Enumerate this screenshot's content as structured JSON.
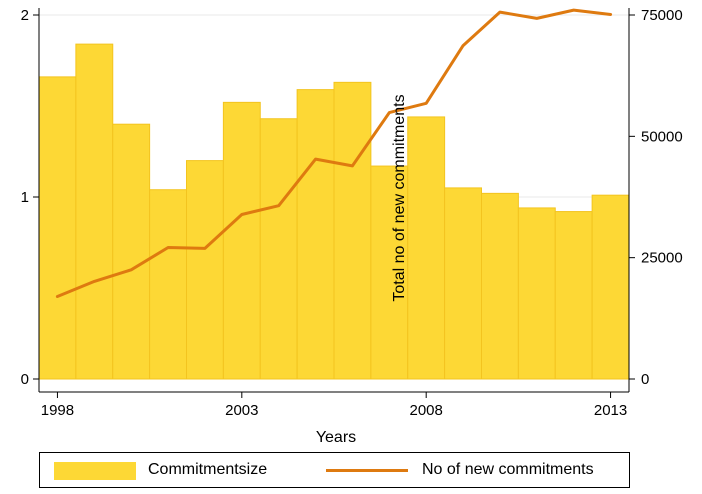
{
  "chart_data": {
    "type": "bar",
    "xlabel": "Years",
    "y2label": "Total no of new commitments",
    "x_ticks": [
      1998,
      2003,
      2008,
      2013
    ],
    "y_ticks": [
      0,
      1,
      2
    ],
    "y2_ticks": [
      0,
      25000,
      50000,
      75000
    ],
    "x_tick_labels": [
      "1998",
      "2003",
      "2008",
      "2013"
    ],
    "y_tick_labels": [
      "0",
      "1",
      "2"
    ],
    "y2_tick_labels": [
      "0",
      "25000",
      "50000",
      "75000"
    ],
    "xlim": [
      1997.5,
      2013.5
    ],
    "ylim": [
      0,
      2
    ],
    "y2lim": [
      0,
      75000
    ],
    "grid": true,
    "legend_position": "bottom",
    "series": [
      {
        "name": "Commitmentsize",
        "type": "bar",
        "axis": "left",
        "color": "#FDD835",
        "x": [
          1998,
          1999,
          2000,
          2001,
          2002,
          2003,
          2004,
          2005,
          2006,
          2007,
          2008,
          2009,
          2010,
          2011,
          2012,
          2013
        ],
        "values": [
          1.66,
          1.84,
          1.4,
          1.04,
          1.2,
          1.52,
          1.43,
          1.59,
          1.63,
          1.17,
          1.44,
          1.05,
          1.02,
          0.94,
          0.92,
          1.01
        ]
      },
      {
        "name": "No of new commitments",
        "type": "line",
        "axis": "right",
        "color": "#DE7A10",
        "x": [
          1998,
          1999,
          2000,
          2001,
          2002,
          2003,
          2004,
          2005,
          2006,
          2007,
          2008,
          2009,
          2010,
          2011,
          2012,
          2013
        ],
        "values": [
          17000,
          20100,
          22500,
          27100,
          26900,
          33900,
          35700,
          45300,
          43900,
          54900,
          56800,
          68700,
          75600,
          74300,
          76000,
          75100
        ]
      }
    ]
  },
  "legend": {
    "bar_label": "Commitmentsize",
    "line_label": "No of new commitments"
  }
}
